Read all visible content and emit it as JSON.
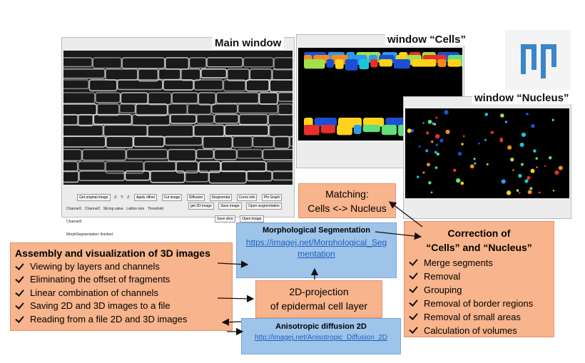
{
  "windows": {
    "main": {
      "title": "Main window",
      "buttons": [
        "Get original image",
        "Apply offset",
        "Cut image",
        "Diffusion",
        "tSegmentat",
        "Cores info",
        "Plv Graph"
      ],
      "channels": [
        "Channel1",
        "Channel2",
        "Channel3"
      ],
      "fields": [
        "X:",
        "Y:",
        "Z:",
        "Slicing value",
        "Lattice size",
        "Threshold"
      ],
      "side_buttons": [
        "get 2D image",
        "Save image",
        "Open segmentation",
        "Save slice",
        "Open image"
      ],
      "status": "MorphSegmentation: finished"
    },
    "cells": {
      "title": "window “Cells”"
    },
    "nucleus": {
      "title": "window “Nucleus”"
    }
  },
  "matching": {
    "lines": [
      "Matching:",
      "Cells <-> Nucleus"
    ]
  },
  "morphological_segmentation": {
    "title": "Morphological Segmentation",
    "link": "https://imagej.net/Morphological_Segmentation"
  },
  "projection": {
    "lines": [
      "2D-projection",
      "of epidermal cell layer"
    ]
  },
  "anisotropic": {
    "title": "Anisotropic diffusion 2D",
    "link": "http://imagej.net/Anisotropic_Diffusion_2D"
  },
  "assembly": {
    "title": "Assembly and visualization of 3D images",
    "items": [
      "Viewing by layers and channels",
      "Eliminating the offset of fragments",
      "Linear combination of channels",
      "Saving 2D and 3D images to a file",
      "Reading from a file 2D and 3D images"
    ]
  },
  "correction": {
    "title_lines": [
      "Correction of",
      "“Cells” and “Nucleus”"
    ],
    "items": [
      "Merge segments",
      "Removal",
      "Grouping",
      "Removal of border regions",
      "Removal of small areas",
      "Calculation of volumes"
    ]
  }
}
